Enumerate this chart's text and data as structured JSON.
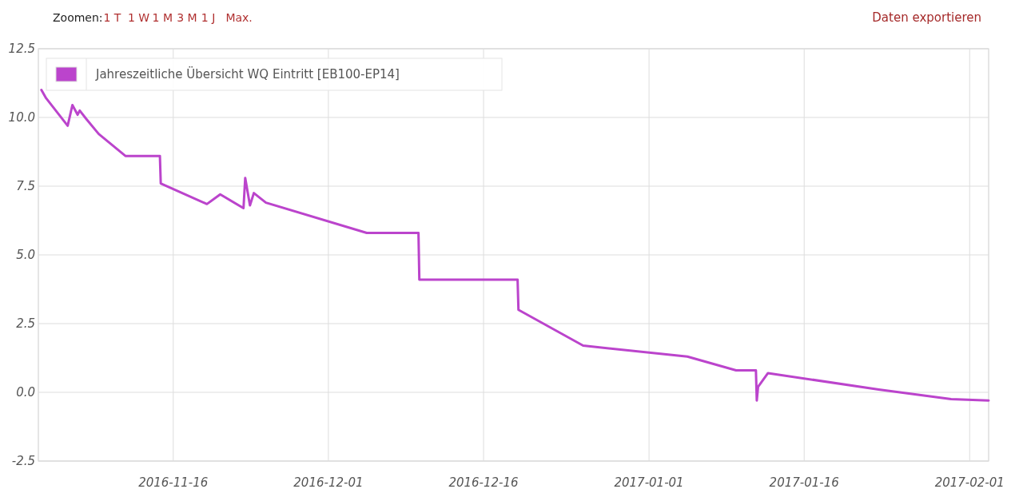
{
  "chart_data": {
    "type": "line",
    "annotations": [
      "Zoomen:",
      "1 T",
      "1 W",
      "1 M",
      "3 M",
      "1 J",
      "Max.",
      "Daten exportieren"
    ],
    "x": [
      "2016-11-03T06:00",
      "2016-11-03T17:00",
      "2016-11-05T19:00",
      "2016-11-06T06:00",
      "2016-11-06T18:00",
      "2016-11-06T23:00",
      "2016-11-07T14:00",
      "2016-11-08T19:00",
      "2016-11-11T09:00",
      "2016-11-14T17:00",
      "2016-11-14T19:00",
      "2016-11-19T06:00",
      "2016-11-20T13:00",
      "2016-11-22T19:00",
      "2016-11-22T23:00",
      "2016-11-23T10:00",
      "2016-11-23T19:00",
      "2016-11-24T23:00",
      "2016-12-04T17:00",
      "2016-12-09T17:00",
      "2016-12-09T19:00",
      "2016-12-19T07:00",
      "2016-12-19T09:00",
      "2016-12-25T15:00",
      "2017-01-04T17:00",
      "2017-01-09T10:00",
      "2017-01-11T08:00",
      "2017-01-11T10:00",
      "2017-01-11T13:00",
      "2017-01-12T12:00",
      "2017-01-23T05:00",
      "2017-01-30T05:00",
      "2017-02-02T20:00"
    ],
    "series": [
      {
        "name": "Jahreszeitliche Übersicht WQ Eintritt [EB100-EP14]",
        "color": "#bb44cc",
        "values": [
          11.0,
          10.7,
          9.7,
          10.45,
          10.1,
          10.25,
          9.95,
          9.4,
          8.6,
          8.6,
          7.6,
          6.85,
          7.2,
          6.7,
          7.8,
          6.8,
          7.25,
          6.9,
          5.8,
          5.8,
          4.1,
          4.1,
          3.0,
          1.7,
          1.3,
          0.8,
          0.8,
          -0.3,
          0.2,
          0.7,
          0.1,
          -0.25,
          -0.3
        ]
      }
    ],
    "xlim": [
      "2016-11-02T23:00",
      "2017-02-02T20:00"
    ],
    "xticks": [
      {
        "value": "2016-11-16",
        "label": "2016-11-16"
      },
      {
        "value": "2016-12-01",
        "label": "2016-12-01"
      },
      {
        "value": "2016-12-16",
        "label": "2016-12-16"
      },
      {
        "value": "2017-01-01",
        "label": "2017-01-01"
      },
      {
        "value": "2017-01-16",
        "label": "2017-01-16"
      },
      {
        "value": "2017-02-01",
        "label": "2017-02-01"
      }
    ],
    "ylim": [
      -2.5,
      12.5
    ],
    "yticks": [
      {
        "value": -2.5,
        "label": "-2.5"
      },
      {
        "value": 0,
        "label": "0.0"
      },
      {
        "value": 2.5,
        "label": "2.5"
      },
      {
        "value": 5,
        "label": "5.0"
      },
      {
        "value": 7.5,
        "label": "7.5"
      },
      {
        "value": 10,
        "label": "10.0"
      },
      {
        "value": 12.5,
        "label": "12.5"
      }
    ],
    "grid": true,
    "legend": "top left",
    "marker": "none",
    "line_style": "solid"
  }
}
